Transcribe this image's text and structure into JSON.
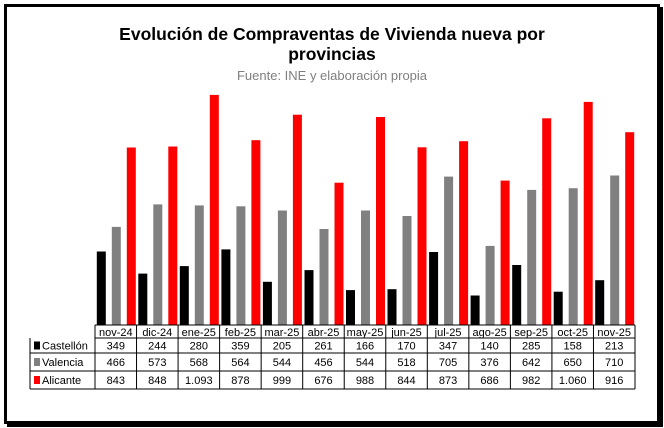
{
  "chart_data": {
    "type": "bar",
    "title_line1": "Evolución de Compraventas de Vivienda nueva por",
    "title_line2": "provincias",
    "subtitle": "Fuente: INE y elaboración propia",
    "categories": [
      "nov-24",
      "dic-24",
      "ene-25",
      "feb-25",
      "mar-25",
      "abr-25",
      "may-25",
      "jun-25",
      "jul-25",
      "ago-25",
      "sep-25",
      "oct-25",
      "nov-25"
    ],
    "series": [
      {
        "name": "Castellón",
        "color": "#000000",
        "values": [
          349,
          244,
          280,
          359,
          205,
          261,
          166,
          170,
          347,
          140,
          285,
          158,
          213
        ],
        "labels": [
          "349",
          "244",
          "280",
          "359",
          "205",
          "261",
          "166",
          "170",
          "347",
          "140",
          "285",
          "158",
          "213"
        ]
      },
      {
        "name": "Valencia",
        "color": "#808080",
        "values": [
          466,
          573,
          568,
          564,
          544,
          456,
          544,
          518,
          705,
          376,
          642,
          650,
          710
        ],
        "labels": [
          "466",
          "573",
          "568",
          "564",
          "544",
          "456",
          "544",
          "518",
          "705",
          "376",
          "642",
          "650",
          "710"
        ]
      },
      {
        "name": "Alicante",
        "color": "#ff0000",
        "values": [
          843,
          848,
          1093,
          878,
          999,
          676,
          988,
          844,
          873,
          686,
          982,
          1060,
          916
        ],
        "labels": [
          "843",
          "848",
          "1.093",
          "878",
          "999",
          "676",
          "988",
          "844",
          "873",
          "686",
          "982",
          "1.060",
          "916"
        ]
      }
    ],
    "ylim": [
      0,
      1100
    ],
    "grid": false,
    "legend": "data-table"
  }
}
